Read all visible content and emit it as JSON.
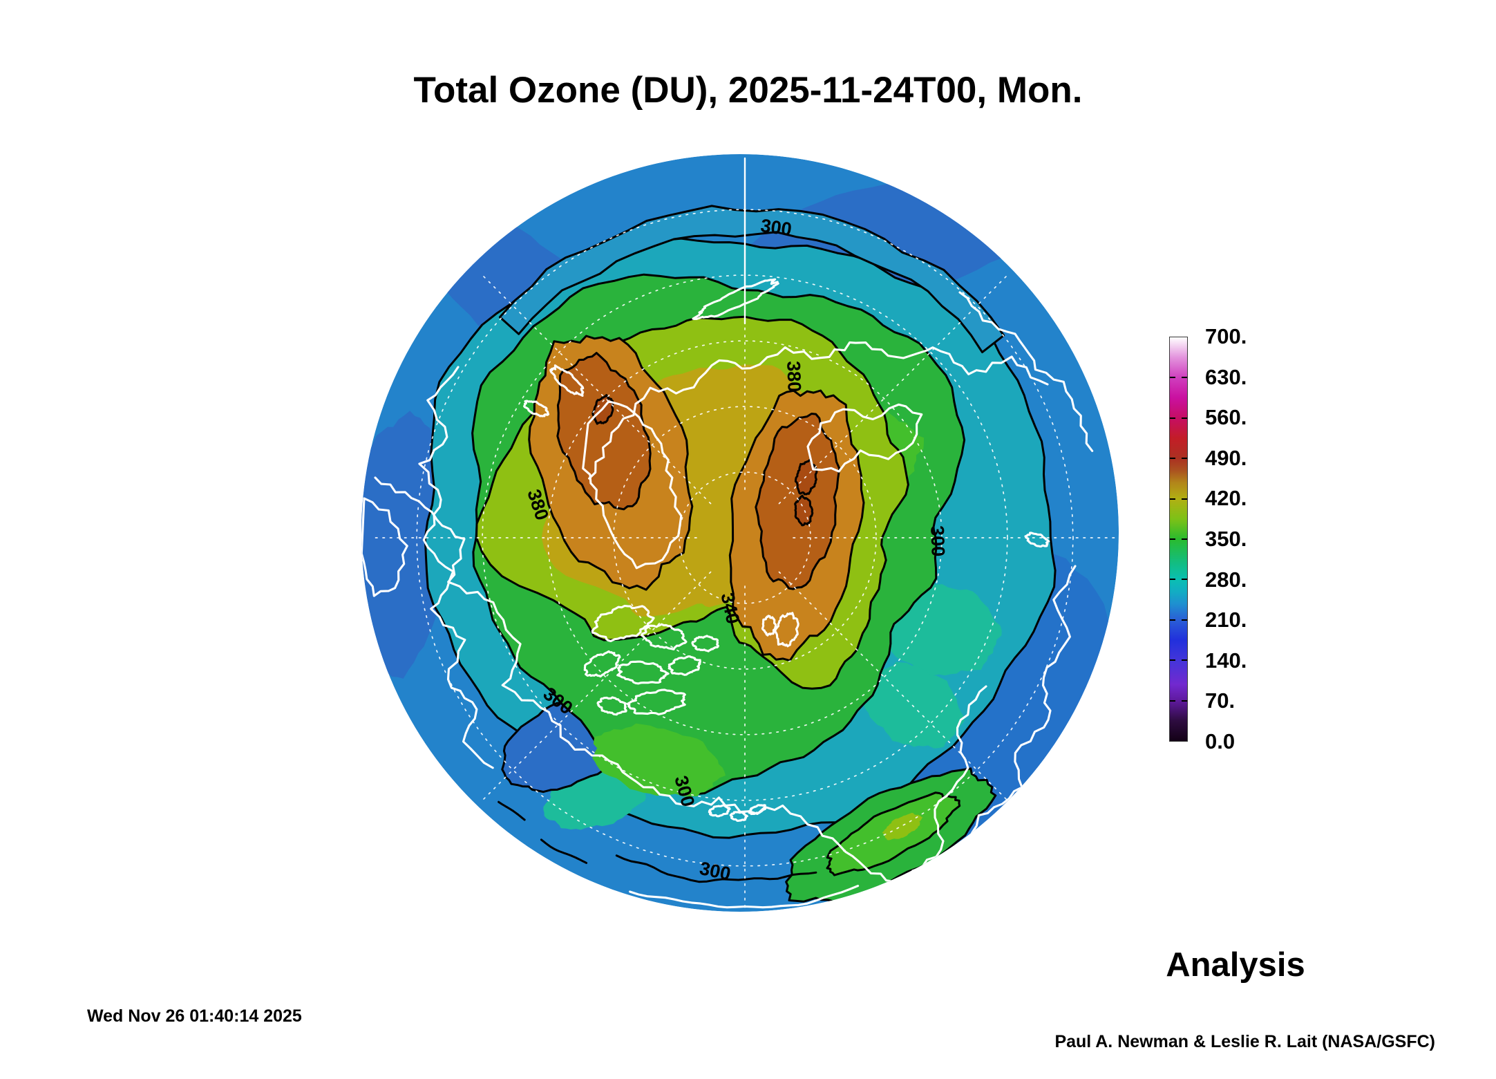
{
  "title": "Total Ozone (DU), 2025-11-24T00, Mon.",
  "footer": {
    "timestamp": "Wed Nov 26 01:40:14 2025",
    "analysis_label": "Analysis",
    "credit": "Paul A. Newman & Leslie R. Lait (NASA/GSFC)"
  },
  "colorbar": {
    "ticks": [
      "700.",
      "630.",
      "560.",
      "490.",
      "420.",
      "350.",
      "280.",
      "210.",
      "140.",
      "70.",
      "0.0"
    ],
    "gradient": [
      {
        "p": 0,
        "c": "#130116"
      },
      {
        "p": 5,
        "c": "#2e0c40"
      },
      {
        "p": 10,
        "c": "#5f1a9e"
      },
      {
        "p": 14,
        "c": "#7229cf"
      },
      {
        "p": 20,
        "c": "#4335da"
      },
      {
        "p": 25,
        "c": "#2130dc"
      },
      {
        "p": 30,
        "c": "#2a5fd6"
      },
      {
        "p": 34,
        "c": "#1e90d0"
      },
      {
        "p": 37,
        "c": "#12adc3"
      },
      {
        "p": 40,
        "c": "#0abfb2"
      },
      {
        "p": 44,
        "c": "#12bd83"
      },
      {
        "p": 50,
        "c": "#2abb2e"
      },
      {
        "p": 55,
        "c": "#7dc117"
      },
      {
        "p": 60,
        "c": "#b1b013"
      },
      {
        "p": 64,
        "c": "#b2851a"
      },
      {
        "p": 67,
        "c": "#ab5220"
      },
      {
        "p": 70,
        "c": "#ab3122"
      },
      {
        "p": 75,
        "c": "#c31d27"
      },
      {
        "p": 80,
        "c": "#c60e63"
      },
      {
        "p": 85,
        "c": "#ca10a0"
      },
      {
        "p": 90,
        "c": "#cf3fbe"
      },
      {
        "p": 95,
        "c": "#e393dd"
      },
      {
        "p": 100,
        "c": "#ffffff"
      }
    ]
  },
  "map": {
    "contour_labels": [
      {
        "text": "300",
        "loc": "top"
      },
      {
        "text": "380",
        "loc": "right-lobe-top"
      },
      {
        "text": "340",
        "loc": "below-pole"
      },
      {
        "text": "380",
        "loc": "left-lobe-west"
      },
      {
        "text": "300",
        "loc": "right"
      },
      {
        "text": "300",
        "loc": "lower-left"
      },
      {
        "text": "300",
        "loc": "bottom-center"
      },
      {
        "text": "300",
        "loc": "bottom-rim"
      }
    ],
    "colors": {
      "base_blue": "#2383cb",
      "dark_blue": "#2b6ec6",
      "dark_blue2": "#2472c9",
      "lens_blue": "#2597c6",
      "teal": "#1ca7bb",
      "teal_green": "#1dbc9b",
      "green": "#2ab33c",
      "green_light": "#43bf2c",
      "yellow_green": "#8fc013",
      "olive": "#bda414",
      "orange": "#c8831d",
      "dark_orange": "#b55f16",
      "red_brown": "#a84b12",
      "contour": "#000000",
      "coast": "#ffffff",
      "graticule": "#ffffff"
    }
  },
  "chart_data": {
    "type": "heatmap",
    "title": "Total Ozone (DU), 2025-11-24T00, Mon.",
    "variable": "total column ozone",
    "units": "Dobson Units (DU)",
    "projection": "Northern Hemisphere polar, pole-centered circular map",
    "colorbar": {
      "min": 0,
      "max": 700,
      "ticks": [
        700,
        630,
        560,
        490,
        420,
        350,
        280,
        210,
        140,
        70,
        0
      ]
    },
    "contours": {
      "interval_DU": 40,
      "labeled_values_DU": [
        300,
        340,
        380
      ]
    },
    "field_pattern": [
      {
        "region": "two lobes near the pole",
        "value_DU": "420-460",
        "color": "orange-brown maxima"
      },
      {
        "region": "high-latitude cap",
        "value_DU": "380-420",
        "color": "yellow-olive"
      },
      {
        "region": "band inside 340 contour",
        "value_DU": "340-380",
        "color": "yellow-green"
      },
      {
        "region": "ring between 300 and 340 contours",
        "value_DU": "300-340",
        "color": "green"
      },
      {
        "region": "mid-latitude ring",
        "value_DU": "260-300",
        "color": "teal-cyan"
      },
      {
        "region": "outer subtropical rim incl. large Pacific-side pool",
        "value_DU": "210-260",
        "color": "blue"
      }
    ],
    "legend_position": "right",
    "annotation": "Analysis"
  }
}
